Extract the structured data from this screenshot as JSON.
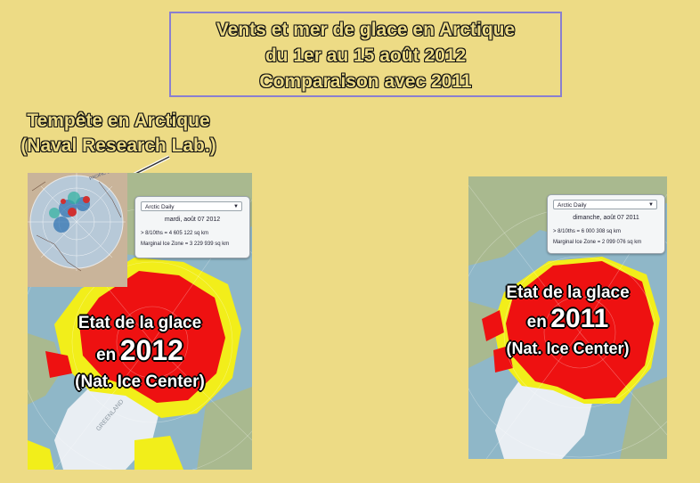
{
  "title": {
    "line1": "Vents et mer de glace en Arctique",
    "line2": "du 1er au 15 août 2012",
    "line3": "Comparaison avec 2011"
  },
  "storm_caption": {
    "line1": "Tempête en Arctique",
    "line2": "(Naval Research Lab.)"
  },
  "inset": {
    "ocean_label": "PACIFIC OCEAN"
  },
  "map_2012": {
    "panel": {
      "dropdown": "Arctic Daily",
      "date": "mardi, août 07 2012",
      "line1": "> 8/10ths = 4 605 122 sq km",
      "line2": "Marginal Ice Zone = 3 229 939 sq km"
    },
    "overlay": {
      "line1": "Etat de la glace",
      "prefix": "en",
      "year": "2012",
      "line3": "(Nat. Ice Center)"
    },
    "land_label": "GREENLAND"
  },
  "map_2011": {
    "panel": {
      "dropdown": "Arctic Daily",
      "date": "dimanche, août 07 2011",
      "line1": "> 8/10ths = 6 000 308 sq km",
      "line2": "Marginal Ice Zone = 2 099 076 sq km"
    },
    "overlay": {
      "line1": "Etat de la glace",
      "prefix": "en",
      "year": "2011",
      "line3": "(Nat. Ice Center)"
    }
  },
  "colors": {
    "background": "#eddb85",
    "ice_dense": "#ee1111",
    "ice_marginal": "#f2ee1a",
    "ocean": "#8fb7c8",
    "land": "#a9b98f",
    "greenland": "#e9eef3"
  }
}
